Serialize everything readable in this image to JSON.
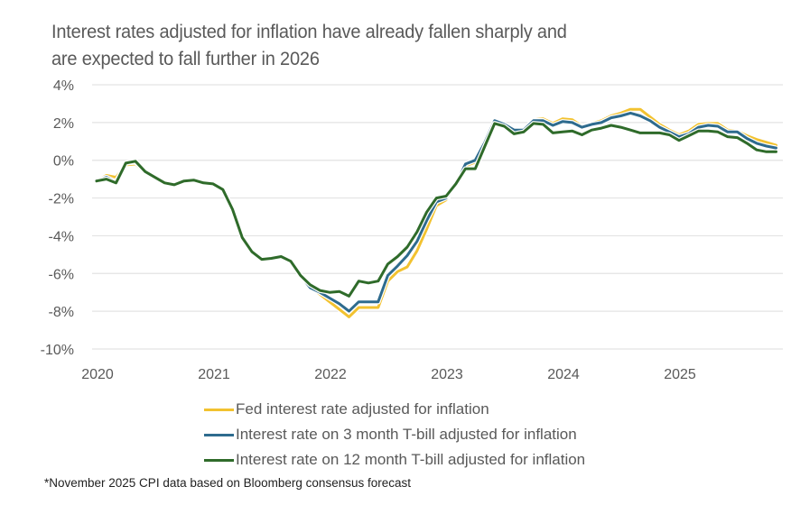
{
  "chart_data": {
    "type": "line",
    "title": "Interest rates adjusted for inflation have already fallen sharply and are expected to fall further in 2026",
    "title_lines": [
      "Interest rates adjusted for inflation have already fallen sharply and",
      "are expected to fall further in 2026"
    ],
    "xlabel": "",
    "ylabel": "",
    "ylim": [
      -10,
      4
    ],
    "yticks": [
      4,
      2,
      0,
      -2,
      -4,
      -6,
      -8,
      -10
    ],
    "ytick_labels": [
      "4%",
      "2%",
      "0%",
      "-2%",
      "-4%",
      "-6%",
      "-8%",
      "-10%"
    ],
    "xtick_labels": [
      "2020",
      "2021",
      "2022",
      "2023",
      "2024",
      "2025"
    ],
    "x_start": "2020-01",
    "x_end": "2025-11",
    "frequency": "monthly",
    "grid": "horizontal",
    "legend_position": "bottom",
    "series": [
      {
        "name": "Fed interest rate adjusted for inflation",
        "color": "#F2C230",
        "values": [
          -1.1,
          -0.8,
          -0.9,
          -0.25,
          -0.2,
          -0.65,
          -0.9,
          -1.2,
          -1.3,
          -1.1,
          -1.05,
          -1.2,
          -1.25,
          -1.55,
          -2.6,
          -4.1,
          -4.85,
          -5.25,
          -5.15,
          -5.05,
          -5.35,
          -6.1,
          -6.7,
          -7.1,
          -7.5,
          -7.9,
          -8.3,
          -7.8,
          -7.8,
          -7.8,
          -6.4,
          -5.9,
          -5.65,
          -4.8,
          -3.65,
          -2.4,
          -2.1,
          -1.35,
          -0.3,
          -0.1,
          0.9,
          2.05,
          1.85,
          1.6,
          1.6,
          2.15,
          2.2,
          1.95,
          2.2,
          2.15,
          1.8,
          1.95,
          2.1,
          2.35,
          2.5,
          2.7,
          2.7,
          2.3,
          1.9,
          1.6,
          1.35,
          1.55,
          1.9,
          1.95,
          1.95,
          1.6,
          1.55,
          1.3,
          1.1,
          0.95,
          0.8
        ]
      },
      {
        "name": "Interest rate on 3 month T-bill adjusted for inflation",
        "color": "#2E6B8E",
        "values": [
          -1.1,
          -0.9,
          -1.15,
          -0.15,
          -0.1,
          -0.6,
          -0.9,
          -1.2,
          -1.3,
          -1.1,
          -1.05,
          -1.2,
          -1.25,
          -1.55,
          -2.6,
          -4.1,
          -4.85,
          -5.25,
          -5.2,
          -5.1,
          -5.35,
          -6.1,
          -6.75,
          -7.0,
          -7.3,
          -7.6,
          -8.0,
          -7.5,
          -7.5,
          -7.5,
          -6.1,
          -5.6,
          -5.05,
          -4.3,
          -3.2,
          -2.2,
          -2.0,
          -1.3,
          -0.2,
          0.0,
          0.95,
          2.1,
          1.9,
          1.6,
          1.6,
          2.1,
          2.1,
          1.85,
          2.05,
          2.0,
          1.75,
          1.9,
          2.0,
          2.25,
          2.35,
          2.5,
          2.35,
          2.1,
          1.75,
          1.5,
          1.25,
          1.4,
          1.75,
          1.85,
          1.8,
          1.5,
          1.5,
          1.15,
          0.9,
          0.75,
          0.65
        ]
      },
      {
        "name": "Interest rate on 12 month T-bill adjusted for inflation",
        "color": "#2F6B2A",
        "values": [
          -1.1,
          -1.0,
          -1.2,
          -0.15,
          -0.05,
          -0.6,
          -0.9,
          -1.2,
          -1.3,
          -1.1,
          -1.05,
          -1.2,
          -1.25,
          -1.55,
          -2.6,
          -4.1,
          -4.85,
          -5.25,
          -5.2,
          -5.1,
          -5.35,
          -6.1,
          -6.6,
          -6.9,
          -7.0,
          -6.95,
          -7.2,
          -6.4,
          -6.5,
          -6.4,
          -5.5,
          -5.1,
          -4.6,
          -3.8,
          -2.75,
          -2.0,
          -1.9,
          -1.25,
          -0.45,
          -0.45,
          0.75,
          1.95,
          1.8,
          1.4,
          1.5,
          1.95,
          1.9,
          1.45,
          1.5,
          1.55,
          1.35,
          1.6,
          1.7,
          1.85,
          1.75,
          1.6,
          1.45,
          1.45,
          1.45,
          1.35,
          1.05,
          1.3,
          1.55,
          1.55,
          1.5,
          1.25,
          1.2,
          0.9,
          0.55,
          0.45,
          0.45
        ]
      }
    ],
    "footnote": "*November 2025 CPI data based on Bloomberg consensus forecast"
  }
}
